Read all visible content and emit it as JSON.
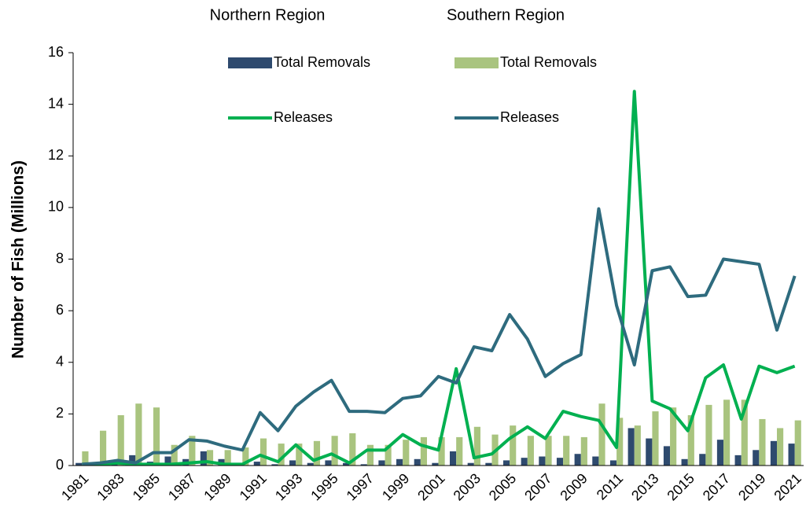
{
  "chart_data": {
    "type": "bar_line",
    "y_label": "Number of Fish (Millions)",
    "legend_titles": [
      "Northern Region",
      "Southern Region"
    ],
    "categories": [
      "1981",
      null,
      "1983",
      null,
      "1985",
      null,
      "1987",
      null,
      "1989",
      null,
      "1991",
      null,
      "1993",
      null,
      "1995",
      null,
      "1997",
      null,
      "1999",
      null,
      "2001",
      null,
      "2003",
      null,
      "2005",
      null,
      "2007",
      null,
      "2009",
      null,
      "2011",
      null,
      "2013",
      null,
      "2015",
      null,
      "2017",
      null,
      "2019",
      null,
      "2021"
    ],
    "ylim": [
      0,
      16
    ],
    "yticks": [
      0,
      2,
      4,
      6,
      8,
      10,
      12,
      14,
      16
    ],
    "grid": false,
    "series": [
      {
        "name": "Total Removals",
        "kind": "bar",
        "color": "#2e4a6e",
        "values": [
          0.1,
          0.1,
          0.15,
          0.4,
          0.15,
          0.35,
          0.25,
          0.55,
          0.25,
          0.05,
          0.15,
          0.05,
          0.2,
          0.1,
          0.2,
          0.1,
          0.05,
          0.2,
          0.25,
          0.25,
          0.1,
          0.55,
          0.1,
          0.1,
          0.2,
          0.3,
          0.35,
          0.3,
          0.45,
          0.35,
          0.2,
          1.45,
          1.05,
          0.75,
          0.25,
          0.45,
          1.0,
          0.4,
          0.6,
          0.95,
          0.85
        ]
      },
      {
        "name": "Total Removals",
        "kind": "bar",
        "color": "#a9c47f",
        "values": [
          0.55,
          1.35,
          1.95,
          2.4,
          2.25,
          0.8,
          1.15,
          0.6,
          0.6,
          0.7,
          1.05,
          0.85,
          0.85,
          0.95,
          1.15,
          1.25,
          0.8,
          0.8,
          1.0,
          1.1,
          1.1,
          1.1,
          1.5,
          1.2,
          1.55,
          1.15,
          1.15,
          1.15,
          1.1,
          2.4,
          1.85,
          1.55,
          2.1,
          2.25,
          1.95,
          2.35,
          2.55,
          2.55,
          1.8,
          1.45,
          1.75
        ]
      },
      {
        "name": "Releases",
        "kind": "line",
        "color": "#00b050",
        "values": [
          0.05,
          0.05,
          0.1,
          0.05,
          0.05,
          0.05,
          0.1,
          0.15,
          0.05,
          0.05,
          0.4,
          0.15,
          0.8,
          0.2,
          0.45,
          0.1,
          0.6,
          0.6,
          1.2,
          0.8,
          0.6,
          3.75,
          0.3,
          0.45,
          1.05,
          1.5,
          1.05,
          2.1,
          1.9,
          1.75,
          0.7,
          14.5,
          2.5,
          2.2,
          1.35,
          3.4,
          3.9,
          1.8,
          3.85,
          3.6,
          3.85
        ]
      },
      {
        "name": "Releases",
        "kind": "line",
        "color": "#2e6b7e",
        "values": [
          0.05,
          0.1,
          0.2,
          0.1,
          0.5,
          0.5,
          1.0,
          0.95,
          0.75,
          0.6,
          2.05,
          1.35,
          2.3,
          2.85,
          3.3,
          2.1,
          2.1,
          2.05,
          2.6,
          2.7,
          3.45,
          3.2,
          4.6,
          4.45,
          5.85,
          4.9,
          3.45,
          3.95,
          4.3,
          9.95,
          6.2,
          3.9,
          7.55,
          7.7,
          6.55,
          6.6,
          8.0,
          7.9,
          7.8,
          5.25,
          7.35
        ]
      }
    ]
  }
}
